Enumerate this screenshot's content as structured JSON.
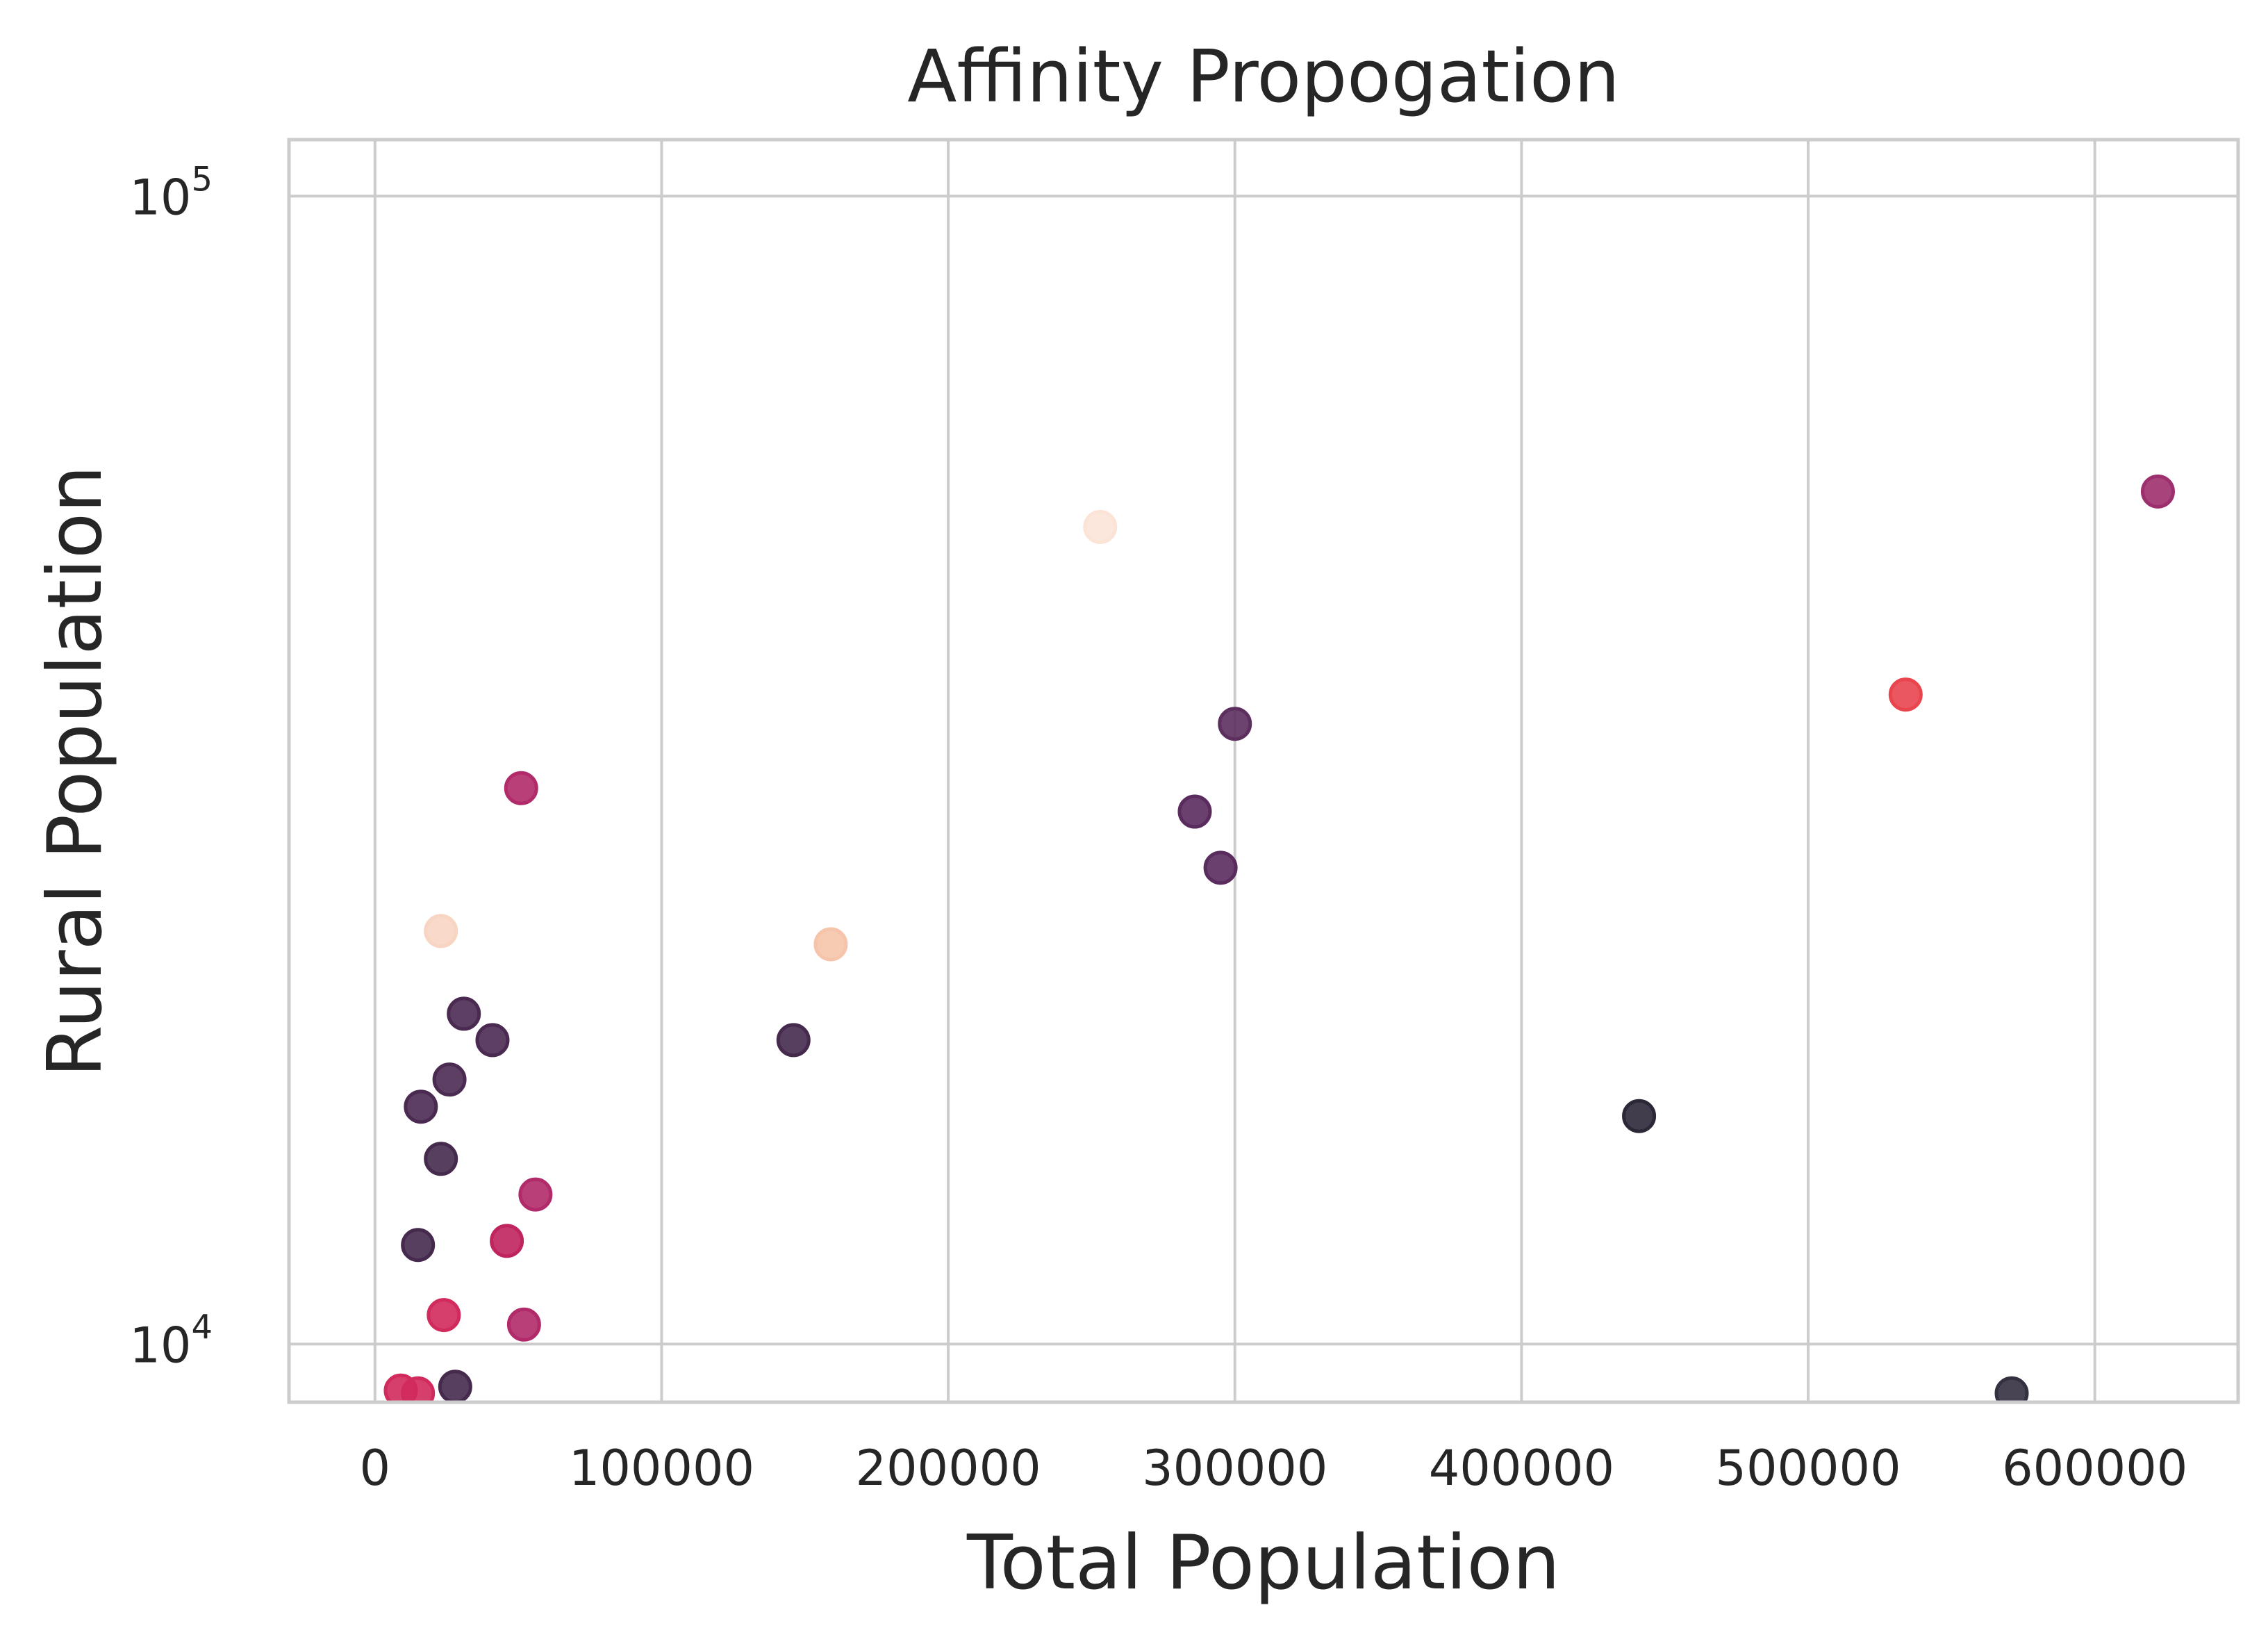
{
  "chart_data": {
    "type": "scatter",
    "title": "Affinity Propogation",
    "xlabel": "Total Population",
    "ylabel": "Rural Population",
    "xlim": [
      -30000,
      650000
    ],
    "ylim": [
      8900,
      112000
    ],
    "yscale": "log",
    "grid": true,
    "x_ticks": [
      {
        "value": 0,
        "label": "0"
      },
      {
        "value": 100000,
        "label": "100000"
      },
      {
        "value": 200000,
        "label": "200000"
      },
      {
        "value": 300000,
        "label": "300000"
      },
      {
        "value": 400000,
        "label": "400000"
      },
      {
        "value": 500000,
        "label": "500000"
      },
      {
        "value": 600000,
        "label": "600000"
      }
    ],
    "y_ticks": [
      {
        "value": 10000,
        "base": "10",
        "exp": "4"
      },
      {
        "value": 100000,
        "base": "10",
        "exp": "5"
      }
    ],
    "points": [
      {
        "x": 253000,
        "y": 51500,
        "color": "#fbe4d7"
      },
      {
        "x": 622000,
        "y": 55300,
        "color": "#9e2f6e"
      },
      {
        "x": 534000,
        "y": 36800,
        "color": "#e8454f"
      },
      {
        "x": 300000,
        "y": 34700,
        "color": "#5c2f5f"
      },
      {
        "x": 51000,
        "y": 30500,
        "color": "#b12a6a"
      },
      {
        "x": 286000,
        "y": 29100,
        "color": "#5a2c5e"
      },
      {
        "x": 295000,
        "y": 26000,
        "color": "#5a2c5e"
      },
      {
        "x": 23000,
        "y": 22900,
        "color": "#f8d5c3"
      },
      {
        "x": 159000,
        "y": 22300,
        "color": "#f6c4aa"
      },
      {
        "x": 31000,
        "y": 19400,
        "color": "#4b2a52"
      },
      {
        "x": 41000,
        "y": 18400,
        "color": "#4b2a52"
      },
      {
        "x": 146000,
        "y": 18400,
        "color": "#452a4e"
      },
      {
        "x": 26000,
        "y": 17000,
        "color": "#4b2a52"
      },
      {
        "x": 16000,
        "y": 16100,
        "color": "#4b2a52"
      },
      {
        "x": 441000,
        "y": 15800,
        "color": "#2c2838"
      },
      {
        "x": 23000,
        "y": 14500,
        "color": "#452a4e"
      },
      {
        "x": 56000,
        "y": 13500,
        "color": "#b12a6a"
      },
      {
        "x": 46000,
        "y": 12300,
        "color": "#c0245f"
      },
      {
        "x": 15000,
        "y": 12200,
        "color": "#452a4e"
      },
      {
        "x": 24000,
        "y": 10600,
        "color": "#d12a5c"
      },
      {
        "x": 52000,
        "y": 10400,
        "color": "#b12a6a"
      },
      {
        "x": 28000,
        "y": 9180,
        "color": "#452a4e"
      },
      {
        "x": 9000,
        "y": 9110,
        "color": "#d12a5c"
      },
      {
        "x": 15000,
        "y": 9060,
        "color": "#d12a5c"
      },
      {
        "x": 571000,
        "y": 9060,
        "color": "#343040"
      }
    ]
  }
}
